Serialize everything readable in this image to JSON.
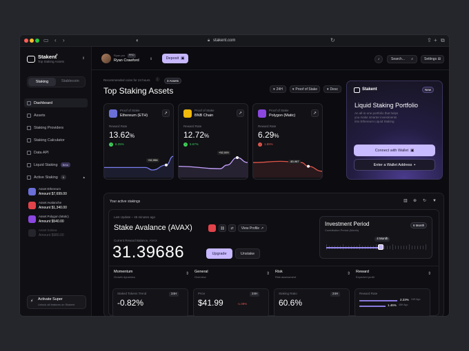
{
  "browser": {
    "url": "stakent.com"
  },
  "sidebar": {
    "logo": "Stakent",
    "logo_reg": "®",
    "subtitle": "Top Staking Assets",
    "tabs": [
      "Staking",
      "Stablecoin"
    ],
    "items": [
      {
        "label": "Dashboard",
        "icon": "grid-icon"
      },
      {
        "label": "Assets",
        "icon": "layers-icon"
      },
      {
        "label": "Staking Providers",
        "icon": "server-icon"
      },
      {
        "label": "Staking Calculator",
        "icon": "calculator-icon"
      },
      {
        "label": "Data API",
        "icon": "code-icon"
      },
      {
        "label": "Liquid Staking",
        "icon": "drop-icon",
        "badge": "Beta"
      },
      {
        "label": "Active Staking",
        "icon": "pulse-icon",
        "count": "6"
      }
    ],
    "assets": [
      {
        "name": "Asset Ethereum",
        "amount": "Amount $7,699.00",
        "color": "#6b6fd8"
      },
      {
        "name": "Asset Avalanche",
        "amount": "Amount $1,340.00",
        "color": "#e2434a"
      },
      {
        "name": "Asset Polygon (Matic)",
        "amount": "Amount $540.00",
        "color": "#8b47e0"
      },
      {
        "name": "Asset Solana",
        "amount": "Amount $980.00",
        "color": "#4a4a55"
      }
    ],
    "promo": {
      "title": "Activate Super",
      "subtitle": "Unlock all features on Stakent"
    }
  },
  "header": {
    "user_role": "Ryan pro",
    "user_badge": "PRO",
    "user_name": "Ryan Crawford",
    "deposit": "Deposit",
    "search": "Search...",
    "settings": "Settings"
  },
  "top": {
    "recommended": "Recommended coins for 24 hours",
    "assets_badge": "3 Assets",
    "title": "Top Staking Assets",
    "filters": [
      "24H",
      "Proof of Stake",
      "Desc"
    ]
  },
  "assets": [
    {
      "type": "Proof of Stake",
      "name": "Ethereum (ETH)",
      "label": "Reward Rate",
      "rate": "13.62",
      "change": "6.25%",
      "tip": "+52,956",
      "color": "#7b7ff0",
      "up": true
    },
    {
      "type": "Proof of Stake",
      "name": "BNB Chain",
      "label": "Reward Rate",
      "rate": "12.72",
      "change": "5.67%",
      "tip": "+52,009",
      "color": "#c8a2ff",
      "up": true
    },
    {
      "type": "Proof of Stake",
      "name": "Polygon (Matic)",
      "label": "Reward Rate",
      "rate": "6.29",
      "change": "1.89%",
      "tip": "-$3,987",
      "color": "#e0564a",
      "up": false
    }
  ],
  "promo": {
    "logo": "Stakent",
    "new": "New",
    "title": "Liquid Staking Portfolio",
    "desc1": "An all-in-one portfolio that helps",
    "desc2": "you make smarter investments",
    "desc3": "into Ethereum Liquid Staking",
    "connect": "Connect with Wallet",
    "enter": "Enter a Wallet Address"
  },
  "active": {
    "title": "Your active stakings",
    "last_update": "Last Update – 45 minutes ago",
    "name": "Stake Avalance (AVAX)",
    "view_profile": "View Profile",
    "balance_label": "Current Reward Balance, AVAX",
    "balance": "31.39686",
    "upgrade": "Upgrade",
    "unstake": "Unstake",
    "period_title": "Investment Period",
    "period_sub": "Contribution Period (Month)",
    "period_badge": "6 Month",
    "slider_tip": "4 Month",
    "slider_value": 0.55,
    "cols": [
      {
        "title": "Momentum",
        "sub": "Growth dynamics"
      },
      {
        "title": "General",
        "sub": "Overview"
      },
      {
        "title": "Risk",
        "sub": "Risk assessment"
      },
      {
        "title": "Reward",
        "sub": "Expected profit"
      }
    ],
    "stats": [
      {
        "label": "Staked Tokens Trend",
        "badge": "24H",
        "value": "-0.82%"
      },
      {
        "label": "Price",
        "badge": "24H",
        "value": "$41.99",
        "change": "-1.09%"
      },
      {
        "label": "Staking Ratio",
        "badge": "24H",
        "value": "60.6%"
      },
      {
        "label": "Reward Rate",
        "r1": "2.23%",
        "r1s": "24H Ago",
        "r2": "1.46%",
        "r2s": "48H Ago"
      }
    ]
  },
  "colors": {
    "accent": "#9b8cf5",
    "positive": "#3fcf5a",
    "negative": "#e0564a"
  }
}
